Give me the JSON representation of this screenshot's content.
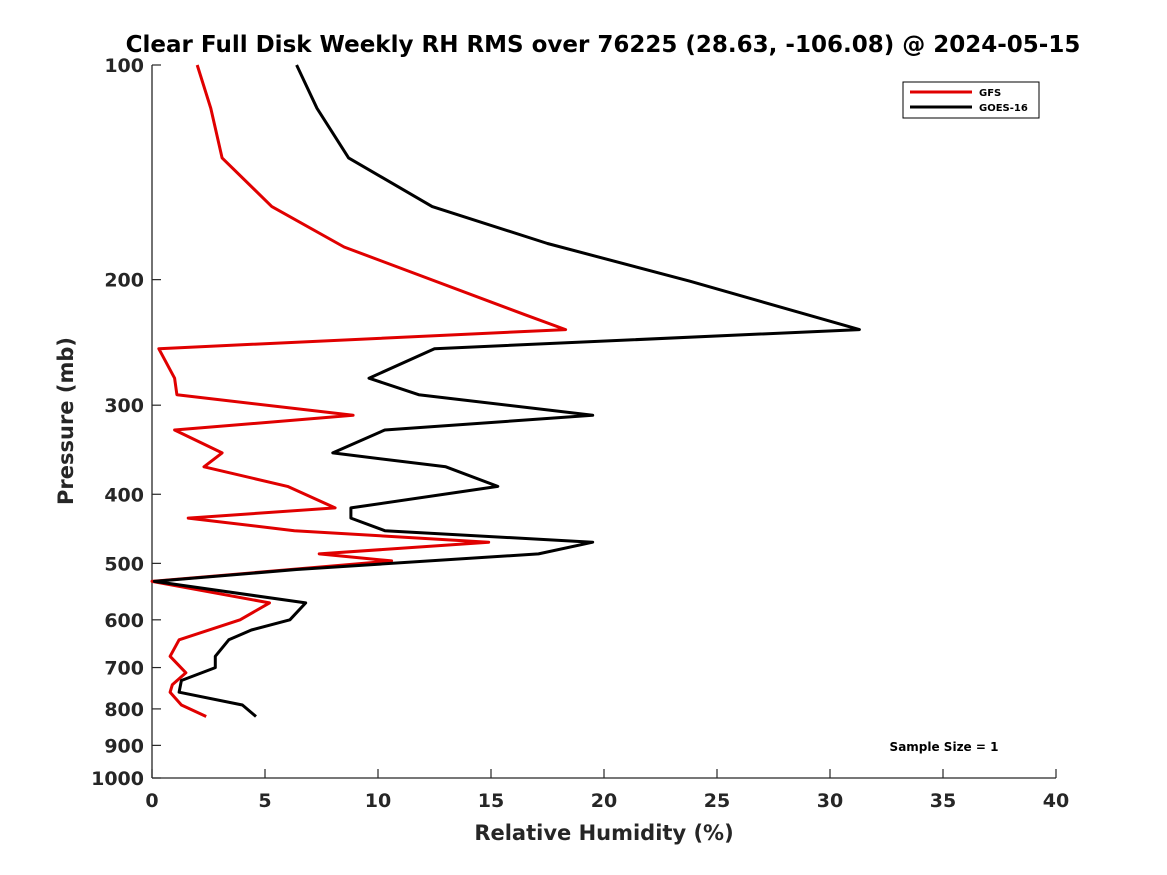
{
  "chart_data": {
    "type": "line",
    "title": "Clear Full Disk Weekly RH RMS over 76225 (28.63, -106.08) @ 2024-05-15",
    "xlabel": "Relative Humidity (%)",
    "ylabel": "Pressure (mb)",
    "xlim": [
      0,
      40
    ],
    "ylim": [
      100,
      1000
    ],
    "y_scale": "log",
    "y_reversed": true,
    "xticks": [
      0,
      5,
      10,
      15,
      20,
      25,
      30,
      35,
      40
    ],
    "xtick_labels": [
      "0",
      "5",
      "10",
      "15",
      "20",
      "25",
      "30",
      "35",
      "40"
    ],
    "yticks": [
      100,
      200,
      300,
      400,
      500,
      600,
      700,
      800,
      900,
      1000
    ],
    "ytick_labels": [
      "100",
      "200",
      "300",
      "400",
      "500",
      "600",
      "700",
      "800",
      "900",
      "1000"
    ],
    "grid": false,
    "legend_position": "top-right",
    "annotation": "Sample Size = 1",
    "series": [
      {
        "name": "GFS",
        "color": "#e00000",
        "points": [
          [
            2.0,
            100
          ],
          [
            2.6,
            115
          ],
          [
            3.1,
            135
          ],
          [
            5.3,
            158
          ],
          [
            8.5,
            180
          ],
          [
            16.5,
            224
          ],
          [
            18.3,
            235
          ],
          [
            0.3,
            250
          ],
          [
            1.0,
            275
          ],
          [
            1.1,
            290
          ],
          [
            8.9,
            310
          ],
          [
            1.0,
            325
          ],
          [
            3.1,
            350
          ],
          [
            2.3,
            366
          ],
          [
            6.0,
            390
          ],
          [
            8.1,
            418
          ],
          [
            1.6,
            432
          ],
          [
            6.3,
            450
          ],
          [
            14.9,
            467
          ],
          [
            7.4,
            485
          ],
          [
            10.6,
            496
          ],
          [
            0.0,
            530
          ],
          [
            5.2,
            568
          ],
          [
            3.9,
            600
          ],
          [
            1.2,
            640
          ],
          [
            0.8,
            675
          ],
          [
            1.5,
            712
          ],
          [
            0.9,
            740
          ],
          [
            0.8,
            758
          ],
          [
            1.3,
            790
          ],
          [
            2.4,
            820
          ]
        ]
      },
      {
        "name": "GOES-16",
        "color": "#000000",
        "points": [
          [
            6.4,
            100
          ],
          [
            7.3,
            115
          ],
          [
            8.7,
            135
          ],
          [
            12.4,
            158
          ],
          [
            17.5,
            178
          ],
          [
            23.8,
            201
          ],
          [
            31.3,
            235
          ],
          [
            12.5,
            250
          ],
          [
            9.6,
            275
          ],
          [
            11.8,
            290
          ],
          [
            19.5,
            310
          ],
          [
            10.3,
            325
          ],
          [
            8.0,
            350
          ],
          [
            13.0,
            366
          ],
          [
            15.3,
            390
          ],
          [
            8.8,
            418
          ],
          [
            8.8,
            432
          ],
          [
            10.3,
            450
          ],
          [
            19.5,
            467
          ],
          [
            17.1,
            485
          ],
          [
            6.4,
            510
          ],
          [
            0.1,
            530
          ],
          [
            6.8,
            568
          ],
          [
            6.1,
            600
          ],
          [
            4.4,
            620
          ],
          [
            3.4,
            640
          ],
          [
            2.8,
            675
          ],
          [
            2.8,
            700
          ],
          [
            1.3,
            730
          ],
          [
            1.2,
            758
          ],
          [
            4.0,
            790
          ],
          [
            4.6,
            820
          ]
        ]
      }
    ]
  }
}
